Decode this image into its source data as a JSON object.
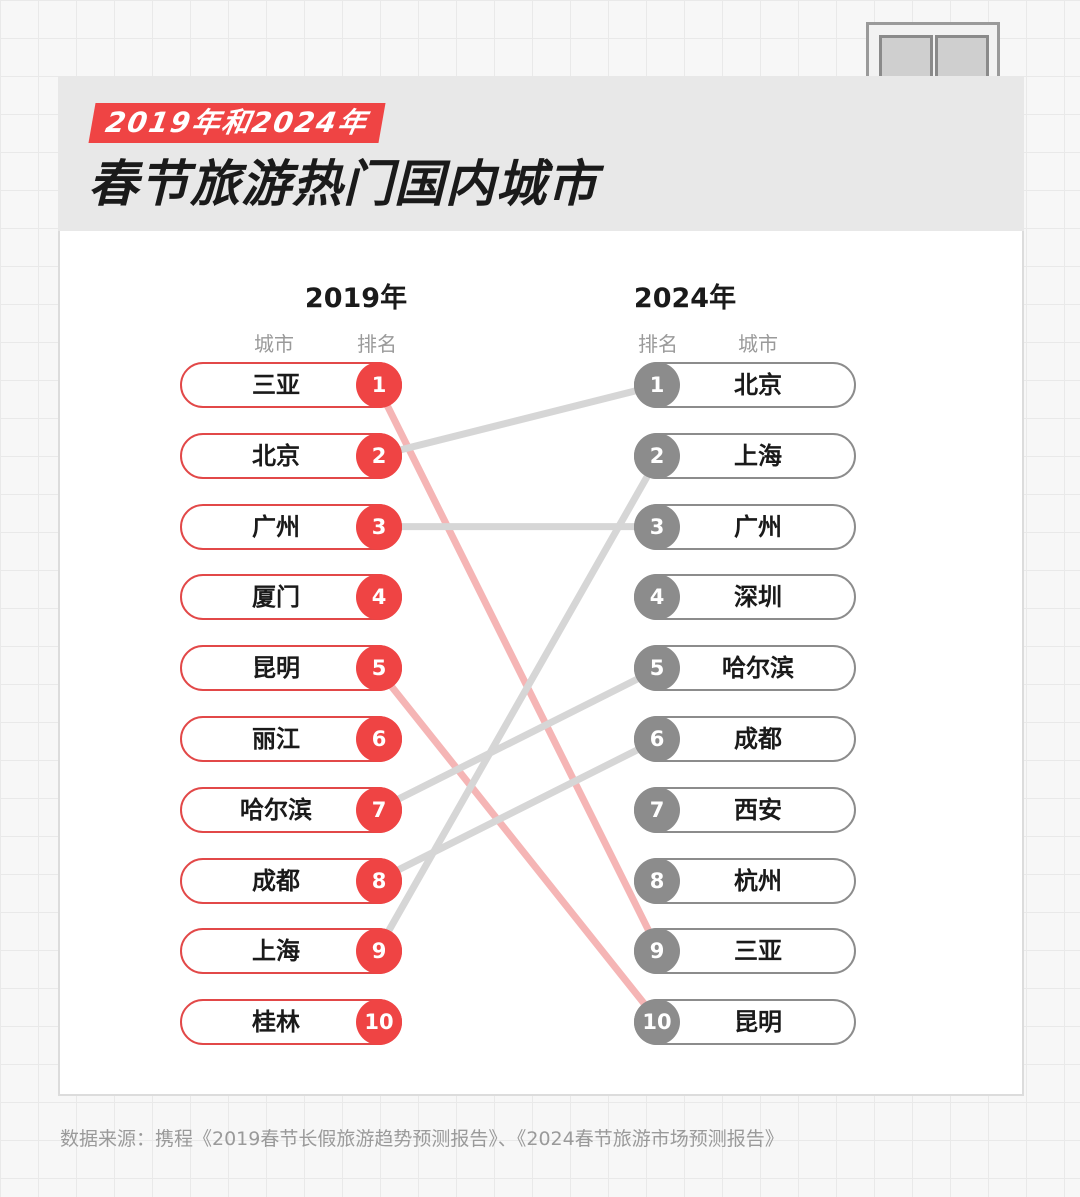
{
  "header": {
    "subtitle": "2019年和2024年",
    "title": "春节旅游热门国内城市"
  },
  "left": {
    "year": "2019年",
    "col_city": "城市",
    "col_rank": "排名",
    "items": [
      {
        "rank": "1",
        "city": "三亚"
      },
      {
        "rank": "2",
        "city": "北京"
      },
      {
        "rank": "3",
        "city": "广州"
      },
      {
        "rank": "4",
        "city": "厦门"
      },
      {
        "rank": "5",
        "city": "昆明"
      },
      {
        "rank": "6",
        "city": "丽江"
      },
      {
        "rank": "7",
        "city": "哈尔滨"
      },
      {
        "rank": "8",
        "city": "成都"
      },
      {
        "rank": "9",
        "city": "上海"
      },
      {
        "rank": "10",
        "city": "桂林"
      }
    ]
  },
  "right": {
    "year": "2024年",
    "col_rank": "排名",
    "col_city": "城市",
    "items": [
      {
        "rank": "1",
        "city": "北京"
      },
      {
        "rank": "2",
        "city": "上海"
      },
      {
        "rank": "3",
        "city": "广州"
      },
      {
        "rank": "4",
        "city": "深圳"
      },
      {
        "rank": "5",
        "city": "哈尔滨"
      },
      {
        "rank": "6",
        "city": "成都"
      },
      {
        "rank": "7",
        "city": "西安"
      },
      {
        "rank": "8",
        "city": "杭州"
      },
      {
        "rank": "9",
        "city": "三亚"
      },
      {
        "rank": "10",
        "city": "昆明"
      }
    ]
  },
  "links": [
    {
      "from_rank": 1,
      "to_rank": 9,
      "color": "#f5b5b5"
    },
    {
      "from_rank": 2,
      "to_rank": 1,
      "color": "#d6d6d6"
    },
    {
      "from_rank": 3,
      "to_rank": 3,
      "color": "#d6d6d6"
    },
    {
      "from_rank": 5,
      "to_rank": 10,
      "color": "#f5b5b5"
    },
    {
      "from_rank": 7,
      "to_rank": 5,
      "color": "#d6d6d6"
    },
    {
      "from_rank": 8,
      "to_rank": 6,
      "color": "#d6d6d6"
    },
    {
      "from_rank": 9,
      "to_rank": 2,
      "color": "#d6d6d6"
    }
  ],
  "colors": {
    "accent_red": "#ef4444",
    "neutral_gray": "#8c8c8c"
  },
  "footer": {
    "source": "数据来源：携程《2019春节长假旅游趋势预测报告》、《2024春节旅游市场预测报告》"
  }
}
